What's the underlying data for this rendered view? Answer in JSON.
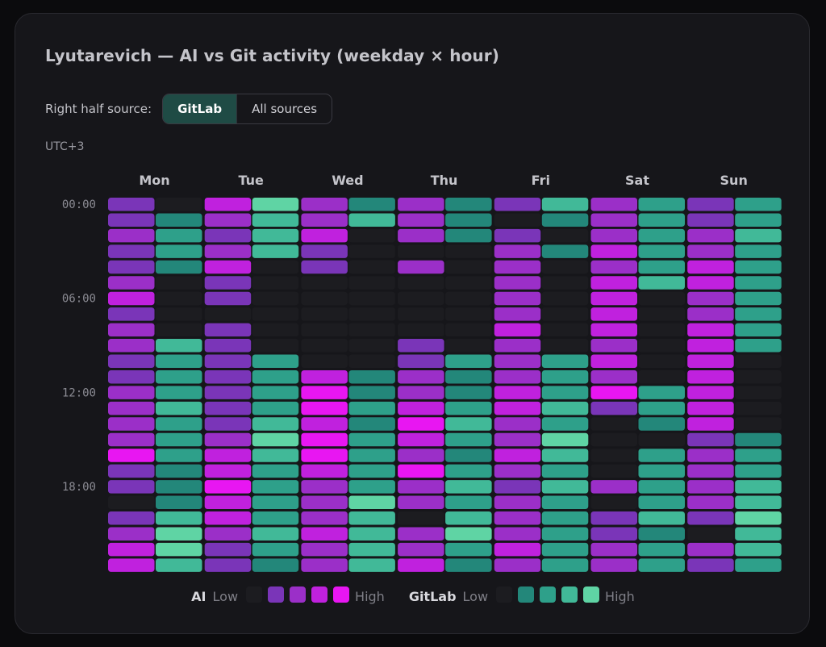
{
  "card": {
    "title": "Lyutarevich — AI vs Git activity (weekday × hour)",
    "source_label": "Right half source:",
    "source_options": [
      "GitLab",
      "All sources"
    ],
    "source_selected": "GitLab",
    "timezone": "UTC+3"
  },
  "legend": {
    "ai": {
      "name": "AI",
      "low": "Low",
      "high": "High"
    },
    "git": {
      "name": "GitLab",
      "low": "Low",
      "high": "High"
    }
  },
  "colors": {
    "empty": "#1c1c20",
    "ai_scale": [
      "#1c1c20",
      "#7a35b8",
      "#9b2fc8",
      "#c021de",
      "#e816f2"
    ],
    "git_scale": [
      "#1c1c20",
      "#23877a",
      "#2ea08a",
      "#41b998",
      "#5fd4a4"
    ]
  },
  "chart_data": {
    "type": "heatmap",
    "title": "Lyutarevich — AI vs Git activity (weekday × hour)",
    "x_categories": [
      "Mon",
      "Tue",
      "Wed",
      "Thu",
      "Fri",
      "Sat",
      "Sun"
    ],
    "y_categories": [
      "00",
      "01",
      "02",
      "03",
      "04",
      "05",
      "06",
      "07",
      "08",
      "09",
      "10",
      "11",
      "12",
      "13",
      "14",
      "15",
      "16",
      "17",
      "18",
      "19",
      "20",
      "21",
      "22",
      "23"
    ],
    "y_tick_labels": [
      {
        "hour": 0,
        "label": "00:00"
      },
      {
        "hour": 6,
        "label": "06:00"
      },
      {
        "hour": 12,
        "label": "12:00"
      },
      {
        "hour": 18,
        "label": "18:00"
      }
    ],
    "value_scale": "0 (none) to 4 (high)",
    "series": [
      {
        "name": "AI",
        "values": [
          [
            1,
            1,
            2,
            1,
            1,
            2,
            3,
            1,
            2,
            2,
            1,
            1,
            2,
            2,
            2,
            2,
            4,
            1,
            1,
            0,
            1,
            2,
            3,
            3
          ],
          [
            3,
            2,
            1,
            2,
            3,
            1,
            1,
            0,
            1,
            1,
            1,
            1,
            1,
            1,
            1,
            2,
            3,
            3,
            4,
            3,
            3,
            2,
            1,
            1
          ],
          [
            2,
            2,
            3,
            1,
            1,
            0,
            0,
            0,
            0,
            0,
            0,
            3,
            4,
            4,
            3,
            4,
            4,
            3,
            2,
            2,
            2,
            3,
            2,
            2
          ],
          [
            2,
            2,
            2,
            0,
            2,
            0,
            0,
            0,
            0,
            1,
            1,
            2,
            2,
            3,
            4,
            3,
            2,
            4,
            2,
            2,
            0,
            2,
            2,
            3
          ],
          [
            1,
            0,
            1,
            2,
            2,
            2,
            2,
            2,
            3,
            2,
            2,
            2,
            3,
            3,
            2,
            2,
            3,
            2,
            1,
            2,
            2,
            2,
            3,
            2
          ],
          [
            2,
            2,
            2,
            3,
            2,
            3,
            3,
            3,
            3,
            2,
            3,
            2,
            4,
            1,
            0,
            0,
            0,
            0,
            2,
            0,
            1,
            1,
            2,
            2
          ],
          [
            1,
            1,
            2,
            2,
            3,
            3,
            2,
            2,
            3,
            3,
            3,
            3,
            3,
            3,
            3,
            1,
            2,
            2,
            2,
            2,
            1,
            0,
            2,
            1
          ]
        ]
      },
      {
        "name": "GitLab",
        "values": [
          [
            0,
            1,
            2,
            2,
            1,
            0,
            0,
            0,
            0,
            3,
            2,
            2,
            2,
            3,
            2,
            2,
            2,
            1,
            1,
            1,
            3,
            4,
            4,
            3
          ],
          [
            4,
            3,
            3,
            3,
            0,
            0,
            0,
            0,
            0,
            0,
            2,
            2,
            2,
            2,
            3,
            4,
            3,
            2,
            2,
            2,
            2,
            3,
            2,
            1
          ],
          [
            1,
            3,
            0,
            0,
            0,
            0,
            0,
            0,
            0,
            0,
            0,
            1,
            1,
            2,
            1,
            2,
            2,
            2,
            2,
            4,
            3,
            3,
            3,
            3
          ],
          [
            1,
            1,
            1,
            0,
            0,
            0,
            0,
            0,
            0,
            0,
            2,
            1,
            1,
            2,
            3,
            2,
            1,
            2,
            3,
            2,
            3,
            4,
            2,
            1
          ],
          [
            3,
            1,
            0,
            1,
            0,
            0,
            0,
            0,
            0,
            0,
            2,
            2,
            2,
            3,
            2,
            4,
            3,
            2,
            3,
            2,
            2,
            2,
            2,
            2
          ],
          [
            2,
            2,
            2,
            2,
            2,
            3,
            0,
            0,
            0,
            0,
            0,
            0,
            2,
            2,
            1,
            0,
            2,
            2,
            2,
            2,
            3,
            1,
            2,
            2
          ],
          [
            2,
            2,
            3,
            2,
            2,
            2,
            2,
            2,
            2,
            2,
            0,
            0,
            0,
            0,
            0,
            1,
            2,
            2,
            3,
            3,
            4,
            3,
            3,
            2
          ]
        ]
      }
    ],
    "legend": [
      "AI",
      "GitLab"
    ],
    "grid": false
  }
}
